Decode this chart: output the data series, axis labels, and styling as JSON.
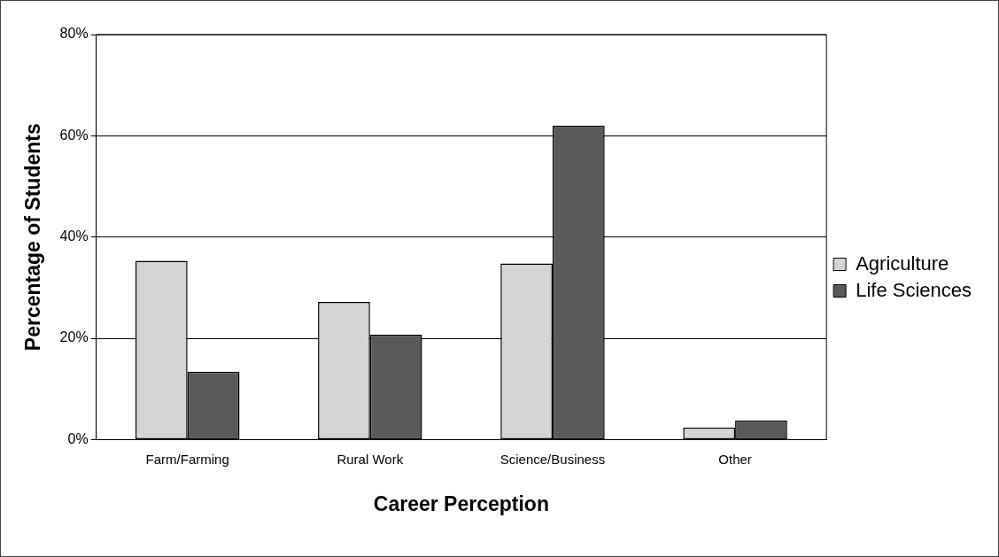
{
  "chart_data": {
    "type": "bar",
    "xlabel": "Career Perception",
    "ylabel": "Percentage of Students",
    "categories": [
      "Farm/Farming",
      "Rural Work",
      "Science/Business",
      "Other"
    ],
    "series": [
      {
        "name": "Agriculture",
        "color": "#d4d4d4",
        "values": [
          35.3,
          27.2,
          34.8,
          2.4
        ]
      },
      {
        "name": "Life Sciences",
        "color": "#5a5a5a",
        "values": [
          13.4,
          20.7,
          62,
          3.8
        ]
      }
    ],
    "ylim": [
      0,
      80
    ],
    "yticks": [
      {
        "value": 0,
        "label": "0%"
      },
      {
        "value": 20,
        "label": "20%"
      },
      {
        "value": 40,
        "label": "40%"
      },
      {
        "value": 60,
        "label": "60%"
      },
      {
        "value": 80,
        "label": "80%"
      }
    ],
    "grid": "y",
    "legend": "right"
  }
}
